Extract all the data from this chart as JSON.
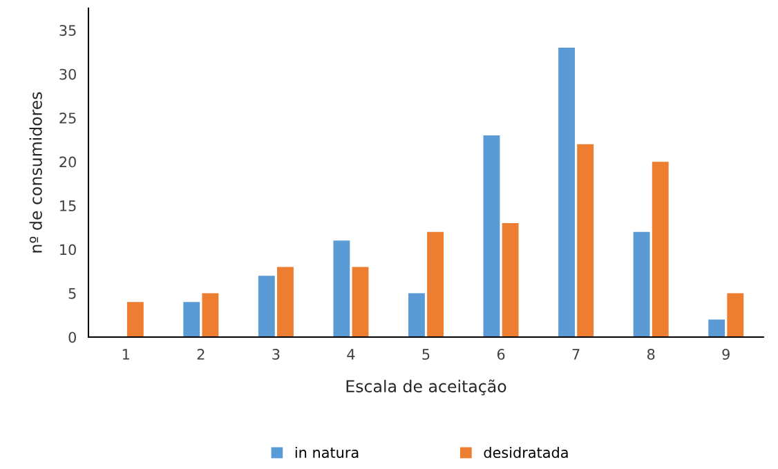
{
  "chart_data": {
    "type": "bar",
    "xlabel": "Escala de aceitação",
    "ylabel": "nº de consumidores",
    "categories": [
      "1",
      "2",
      "3",
      "4",
      "5",
      "6",
      "7",
      "8",
      "9"
    ],
    "series": [
      {
        "name": "in natura",
        "color": "#5b9bd5",
        "values": [
          0,
          4,
          7,
          11,
          5,
          23,
          33,
          12,
          2
        ]
      },
      {
        "name": "desidratada",
        "color": "#ed7d31",
        "values": [
          4,
          5,
          8,
          8,
          12,
          13,
          22,
          20,
          5
        ]
      }
    ],
    "ylim": [
      0,
      37.5
    ],
    "yticks": [
      0,
      5,
      10,
      15,
      20,
      25,
      30,
      35
    ],
    "grid": false,
    "legend": "bottom"
  }
}
